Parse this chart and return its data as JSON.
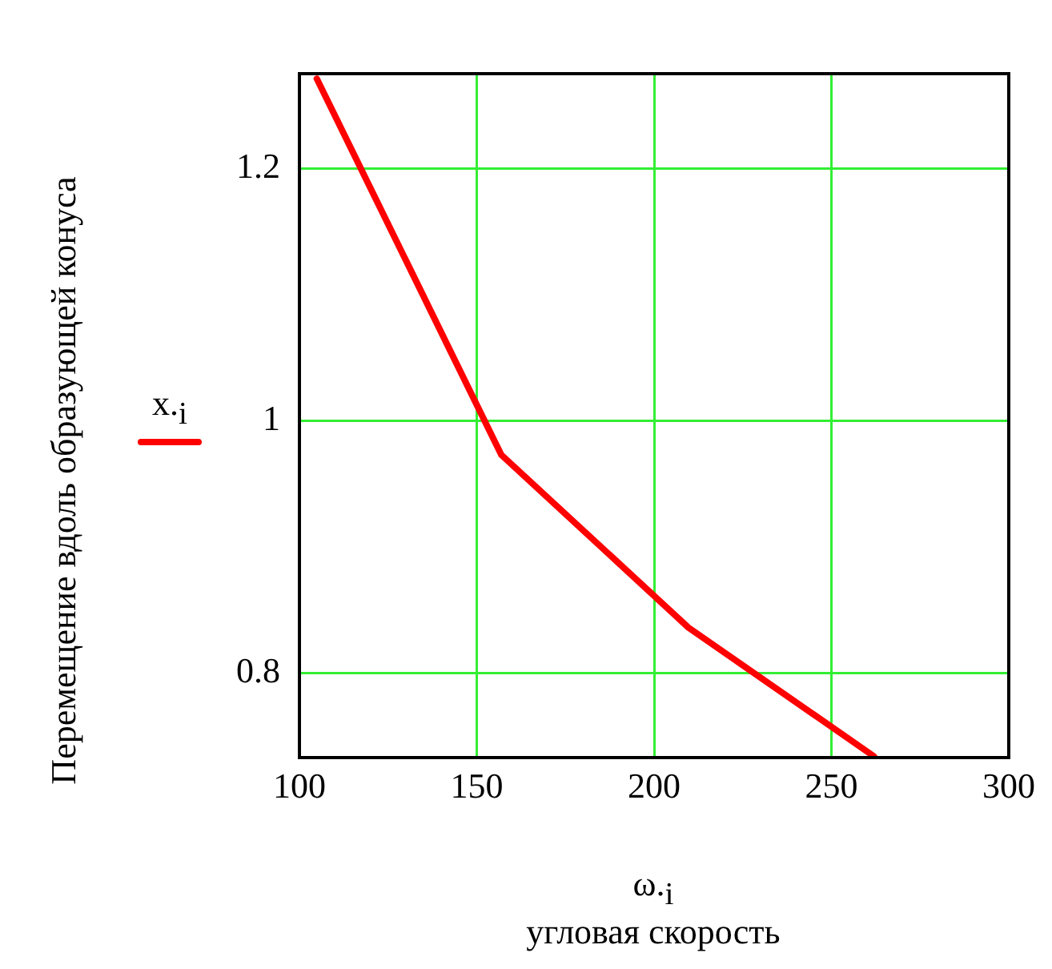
{
  "chart_data": {
    "type": "line",
    "xlabel": "ω.$_{i}$\nугловая скорость",
    "ylabel": "Перемещение вдоль образующей конуса",
    "x": [
      104.9,
      156.9,
      209.7,
      262.0
    ],
    "series": [
      {
        "name": "x.$_{i}$",
        "color": "#ff0000",
        "values": [
          1.271,
          0.973,
          0.836,
          0.734
        ]
      }
    ],
    "xlim": [
      100,
      300
    ],
    "xticks": [
      100,
      150,
      200,
      250,
      300
    ],
    "ylim": [
      0.733,
      1.275
    ],
    "yticks": [
      0.8,
      1,
      1.2
    ],
    "grid": true,
    "legend": "left",
    "marker": "none",
    "line_style": "solid"
  }
}
